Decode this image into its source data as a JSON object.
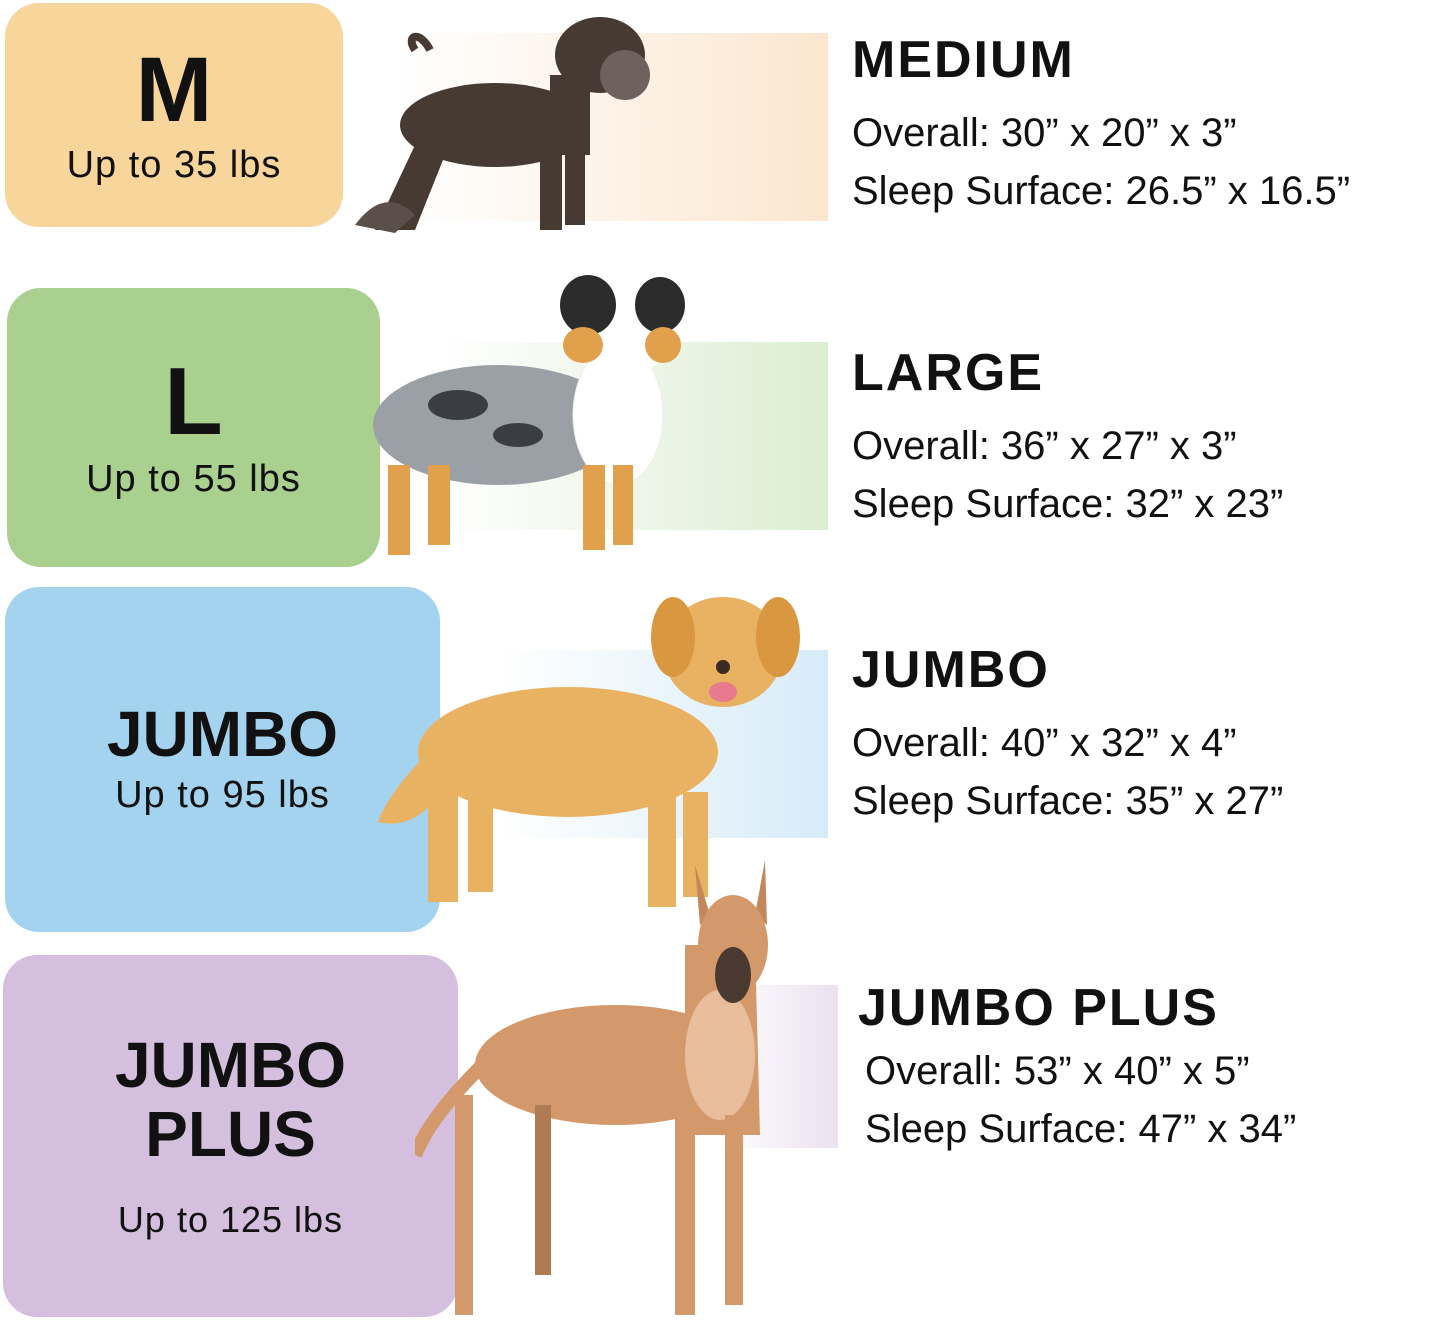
{
  "sizes": [
    {
      "code": "M",
      "weight": "Up to 35 lbs",
      "name": "MEDIUM",
      "overall": "Overall: 30” x 20” x 3”",
      "sleep": "Sleep Surface: 26.5” x 16.5”",
      "color": "#f8d59b",
      "strip": "#fbe6cf",
      "dog": "schnauzer-illustration"
    },
    {
      "code": "L",
      "weight": "Up to 55 lbs",
      "name": "LARGE",
      "overall": "Overall: 36” x 27” x 3”",
      "sleep": "Sleep Surface: 32” x 23”",
      "color": "#a9d08e",
      "strip": "#dcedd2",
      "dog": "australian-shepherd-illustration"
    },
    {
      "code": "JUMBO",
      "weight": "Up to 95 lbs",
      "name": "JUMBO",
      "overall": "Overall: 40” x 32” x 4”",
      "sleep": "Sleep Surface: 35” x 27”",
      "color": "#a3d3ef",
      "strip": "#d6ebf8",
      "dog": "golden-retriever-illustration"
    },
    {
      "code": "JUMBO PLUS",
      "weight": "Up to 125 lbs",
      "name": "JUMBO PLUS",
      "overall": "Overall: 53” x 40” x 5”",
      "sleep": "Sleep Surface: 47” x 34”",
      "color": "#d4c0de",
      "strip": "#ebe1f0",
      "dog": "great-dane-illustration"
    }
  ]
}
